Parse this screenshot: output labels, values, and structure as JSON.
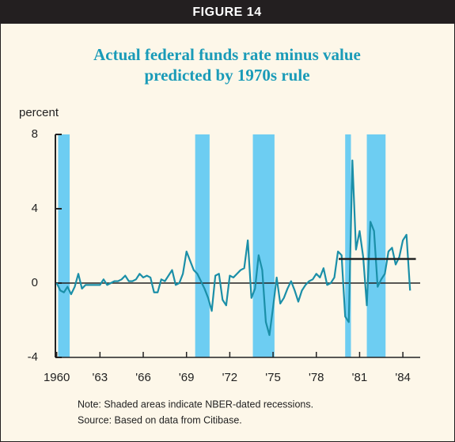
{
  "chart_data": {
    "type": "line",
    "figure_label": "FIGURE 14",
    "title": [
      "Actual federal funds rate minus value",
      "predicted by 1970s rule"
    ],
    "y_label": "percent",
    "notes": [
      "Note: Shaded areas indicate NBER-dated recessions.",
      "Source: Based on data from Citibase."
    ],
    "x": [
      1960.0,
      1960.25,
      1960.5,
      1960.75,
      1961.0,
      1961.25,
      1961.5,
      1961.75,
      1962.0,
      1962.25,
      1962.5,
      1962.75,
      1963.0,
      1963.25,
      1963.5,
      1963.75,
      1964.0,
      1964.25,
      1964.5,
      1964.75,
      1965.0,
      1965.25,
      1965.5,
      1965.75,
      1966.0,
      1966.25,
      1966.5,
      1966.75,
      1967.0,
      1967.25,
      1967.5,
      1967.75,
      1968.0,
      1968.25,
      1968.5,
      1968.75,
      1969.0,
      1969.25,
      1969.5,
      1969.75,
      1970.0,
      1970.25,
      1970.5,
      1970.75,
      1971.0,
      1971.25,
      1971.5,
      1971.75,
      1972.0,
      1972.25,
      1972.5,
      1972.75,
      1973.0,
      1973.25,
      1973.5,
      1973.75,
      1974.0,
      1974.25,
      1974.5,
      1974.75,
      1975.0,
      1975.25,
      1975.5,
      1975.75,
      1976.0,
      1976.25,
      1976.5,
      1976.75,
      1977.0,
      1977.25,
      1977.5,
      1977.75,
      1978.0,
      1978.25,
      1978.5,
      1978.75,
      1979.0,
      1979.25,
      1979.5,
      1979.75,
      1980.0,
      1980.25,
      1980.5,
      1980.75,
      1981.0,
      1981.25,
      1981.5,
      1981.75,
      1982.0,
      1982.25,
      1982.5,
      1982.75,
      1983.0,
      1983.25,
      1983.5,
      1983.75,
      1984.0,
      1984.25,
      1984.5
    ],
    "series": [
      {
        "color": "#1b8fa8",
        "values": [
          0.0,
          -0.4,
          -0.5,
          -0.2,
          -0.6,
          -0.2,
          0.5,
          -0.3,
          -0.1,
          -0.1,
          -0.1,
          -0.1,
          -0.1,
          0.2,
          -0.1,
          0.0,
          0.1,
          0.1,
          0.2,
          0.4,
          0.1,
          0.1,
          0.2,
          0.5,
          0.3,
          0.4,
          0.3,
          -0.5,
          -0.5,
          0.2,
          0.1,
          0.4,
          0.7,
          -0.1,
          0.0,
          0.5,
          1.7,
          1.2,
          0.7,
          0.5,
          0.1,
          -0.3,
          -0.8,
          -1.5,
          0.4,
          0.5,
          -0.9,
          -1.2,
          0.4,
          0.3,
          0.5,
          0.7,
          0.8,
          2.3,
          -0.8,
          -0.3,
          1.5,
          0.7,
          -2.1,
          -2.8,
          -1.3,
          0.3,
          -1.1,
          -0.8,
          -0.3,
          0.1,
          -0.4,
          -1.0,
          -0.4,
          -0.1,
          0.1,
          0.2,
          0.5,
          0.3,
          0.8,
          -0.1,
          0.0,
          0.3,
          1.7,
          1.5,
          -1.8,
          -2.1,
          6.6,
          1.8,
          2.8,
          1.4,
          -1.2,
          3.3,
          2.8,
          -0.2,
          0.2,
          0.5,
          1.7,
          1.9,
          1.0,
          1.4,
          2.3,
          2.6,
          -0.4
        ]
      }
    ],
    "recessions": [
      [
        1960.1,
        1960.9
      ],
      [
        1969.6,
        1970.6
      ],
      [
        1973.6,
        1975.1
      ],
      [
        1980.0,
        1980.4
      ],
      [
        1981.5,
        1982.8
      ]
    ],
    "recession_color": "#6dcdf2",
    "mean_line": {
      "start": 1979.55,
      "end": 1984.9,
      "value": 1.3
    },
    "xlim": [
      1959.8,
      1985.2
    ],
    "xticks": [
      1960,
      {
        "value": 1963,
        "label": "'63"
      },
      {
        "value": 1966,
        "label": "'66"
      },
      {
        "value": 1969,
        "label": "'69"
      },
      {
        "value": 1972,
        "label": "'72"
      },
      {
        "value": 1975,
        "label": "'75"
      },
      {
        "value": 1978,
        "label": "'78"
      },
      {
        "value": 1981,
        "label": "'81"
      },
      {
        "value": 1984,
        "label": "'84"
      }
    ],
    "ylim": [
      -4,
      8
    ],
    "yticks": [
      -4,
      0,
      4,
      8
    ]
  }
}
